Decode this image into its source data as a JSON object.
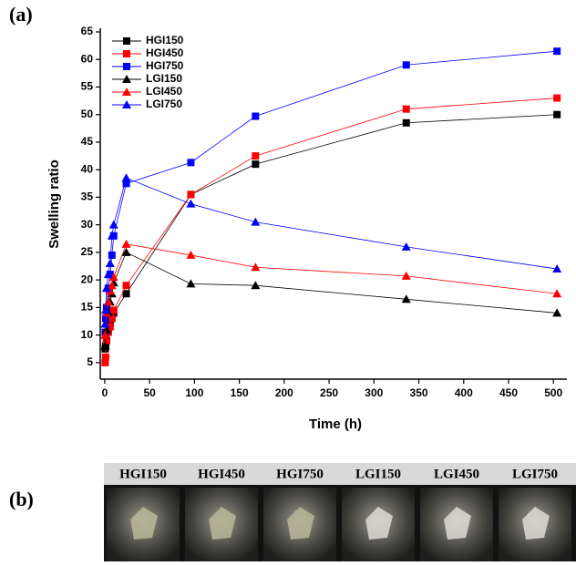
{
  "chart_data": {
    "type": "line",
    "panel_label": "(a)",
    "xlabel": "Time (h)",
    "ylabel": "Swelling ratio",
    "xlim": [
      -5,
      515
    ],
    "ylim": [
      2,
      65
    ],
    "xticks": [
      0,
      50,
      100,
      150,
      200,
      250,
      300,
      350,
      400,
      450,
      500
    ],
    "yticks": [
      5,
      10,
      15,
      20,
      25,
      30,
      35,
      40,
      45,
      50,
      55,
      60,
      65
    ],
    "x": [
      0.5,
      1,
      2,
      4,
      6,
      8,
      10,
      24,
      96,
      168,
      336,
      504
    ],
    "legend": "upper left",
    "series": [
      {
        "name": "HGI150",
        "color": "#000000",
        "marker": "square",
        "values": [
          7.5,
          8,
          9,
          11,
          12,
          13,
          14,
          17.5,
          35.5,
          41,
          48.5,
          50
        ]
      },
      {
        "name": "HGI450",
        "color": "#ff0000",
        "marker": "square",
        "values": [
          5,
          6,
          9,
          10.5,
          11.5,
          13,
          14.5,
          19,
          35.5,
          42.5,
          51,
          53
        ]
      },
      {
        "name": "HGI750",
        "color": "#0000ff",
        "marker": "square",
        "values": [
          10.5,
          13,
          15,
          18.5,
          21,
          24.5,
          28,
          37.5,
          41.3,
          49.7,
          59,
          61.5
        ]
      },
      {
        "name": "LGI150",
        "color": "#000000",
        "marker": "triangle",
        "values": [
          8,
          10,
          11,
          14,
          16,
          17.5,
          19.5,
          25,
          19.3,
          19,
          16.5,
          14
        ]
      },
      {
        "name": "LGI450",
        "color": "#ff0000",
        "marker": "triangle",
        "values": [
          10,
          12,
          14,
          16,
          18,
          19,
          20.5,
          26.5,
          24.5,
          22.3,
          20.7,
          17.5
        ]
      },
      {
        "name": "LGI750",
        "color": "#0000ff",
        "marker": "triangle",
        "values": [
          12,
          14.5,
          18.5,
          21,
          23,
          28,
          30,
          38.5,
          33.8,
          30.5,
          26,
          22
        ]
      }
    ]
  },
  "photo_panel": {
    "label": "(b)",
    "headers": [
      "HGI150",
      "HGI450",
      "HGI750",
      "LGI150",
      "LGI450",
      "LGI750"
    ]
  }
}
